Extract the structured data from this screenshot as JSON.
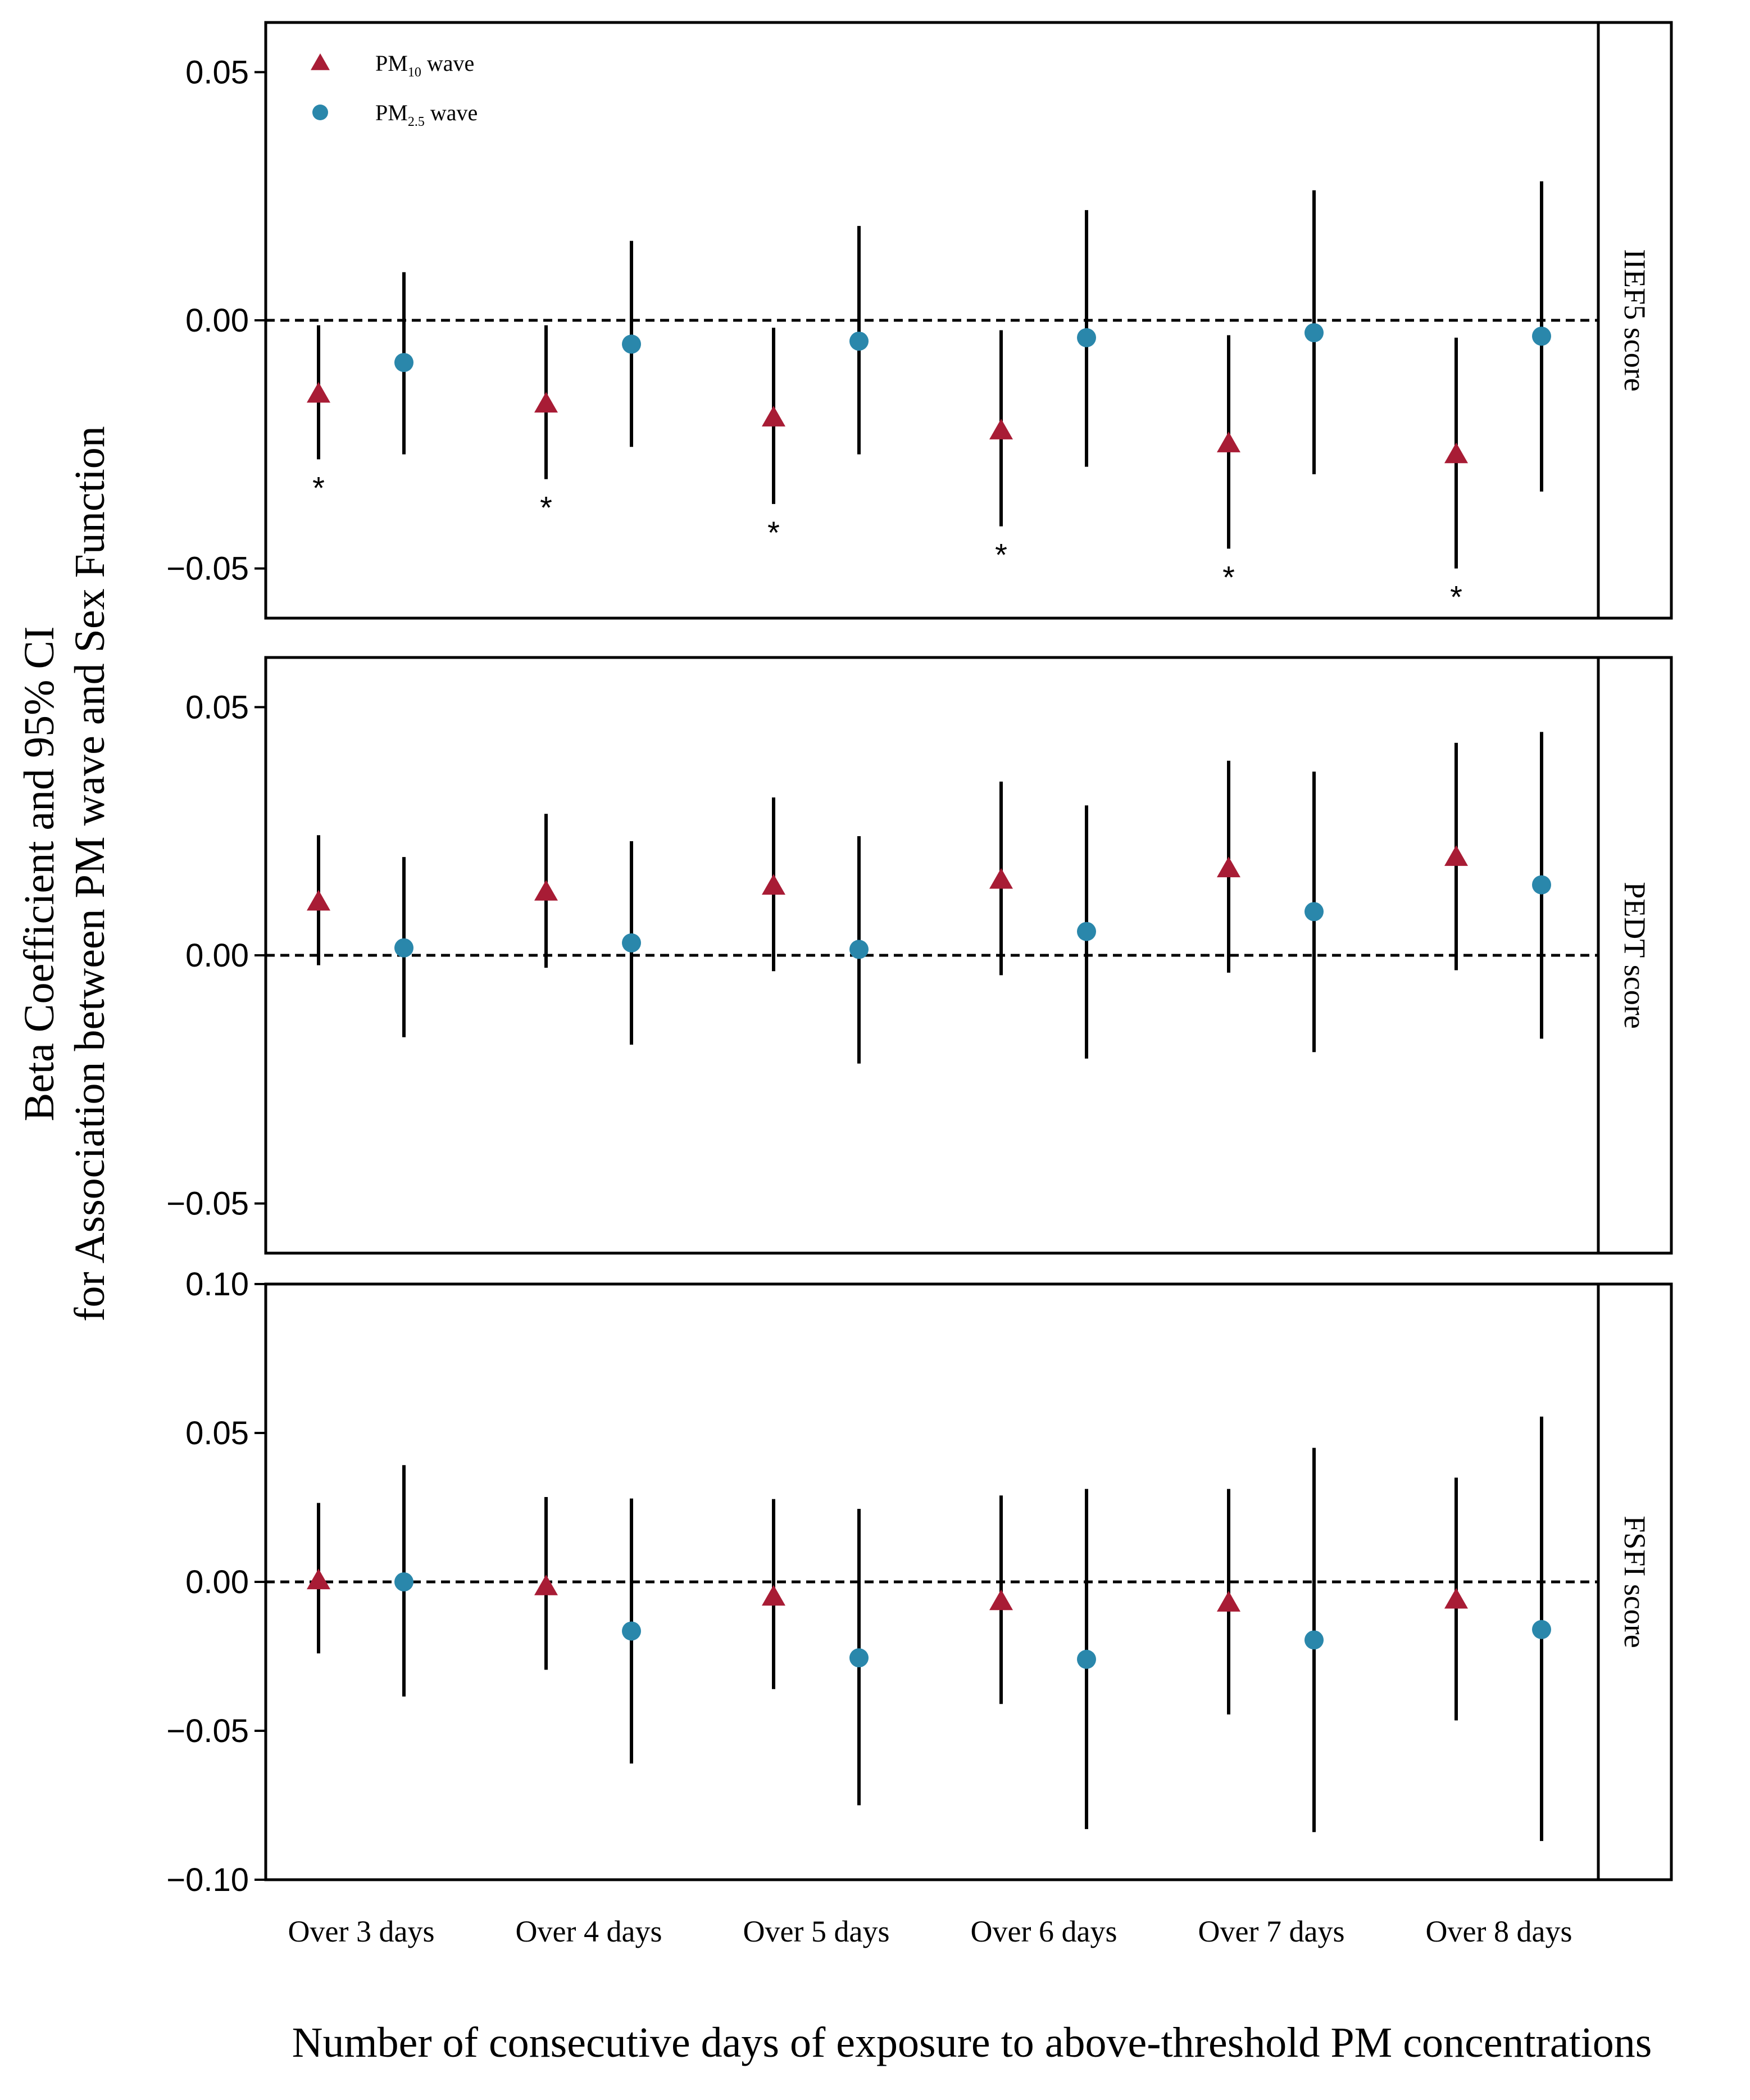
{
  "chart_data": {
    "type": "errorbar",
    "categories": [
      "Over 3 days",
      "Over 4 days",
      "Over 5 days",
      "Over 6 days",
      "Over 7 days",
      "Over 8 days"
    ],
    "xlabel": "Number of consecutive days of exposure to above-threshold PM concentrations",
    "ylabel_line1": "Beta Coefficient and 95% CI",
    "ylabel_line2": "for Association between PM wave and Sex Function",
    "legend": {
      "placement": "top-left",
      "entries": [
        {
          "base": "PM",
          "sub": "10",
          "suffix": " wave",
          "color": "#a81c35",
          "marker": "triangle"
        },
        {
          "base": "PM",
          "sub": "2.5",
          "suffix": " wave",
          "color": "#2a87ab",
          "marker": "circle"
        }
      ]
    },
    "significance_marker": "*",
    "panels": [
      {
        "strip": "IIEF5 score",
        "ylim": [
          -0.06,
          0.06
        ],
        "yticks": [
          0.05,
          0.0,
          -0.05
        ],
        "yticklabels": [
          "0.05",
          "0.00",
          "−0.05"
        ],
        "series": [
          {
            "name": "PM10 wave",
            "est": [
              -0.0148,
              -0.0168,
              -0.0196,
              -0.0222,
              -0.0248,
              -0.027
            ],
            "lo": [
              -0.028,
              -0.032,
              -0.037,
              -0.0415,
              -0.046,
              -0.05
            ],
            "hi": [
              -0.001,
              -0.001,
              -0.0015,
              -0.002,
              -0.003,
              -0.0035
            ],
            "sig": [
              true,
              true,
              true,
              true,
              true,
              true
            ]
          },
          {
            "name": "PM2.5 wave",
            "est": [
              -0.0085,
              -0.0048,
              -0.0042,
              -0.0035,
              -0.0025,
              -0.0032
            ],
            "lo": [
              -0.027,
              -0.0255,
              -0.027,
              -0.0295,
              -0.031,
              -0.0345
            ],
            "hi": [
              0.0097,
              0.016,
              0.019,
              0.0222,
              0.0262,
              0.028
            ],
            "sig": [
              false,
              false,
              false,
              false,
              false,
              false
            ]
          }
        ]
      },
      {
        "strip": "PEDT score",
        "ylim": [
          -0.06,
          0.06
        ],
        "yticks": [
          0.05,
          0.0,
          -0.05
        ],
        "yticklabels": [
          "0.05",
          "0.00",
          "−0.05"
        ],
        "series": [
          {
            "name": "PM10 wave",
            "est": [
              0.0108,
              0.0128,
              0.014,
              0.0152,
              0.0175,
              0.0198
            ],
            "lo": [
              -0.002,
              -0.0025,
              -0.0032,
              -0.004,
              -0.0035,
              -0.003
            ],
            "hi": [
              0.0242,
              0.0285,
              0.0318,
              0.035,
              0.0392,
              0.0428
            ],
            "sig": [
              false,
              false,
              false,
              false,
              false,
              false
            ]
          },
          {
            "name": "PM2.5 wave",
            "est": [
              0.0015,
              0.0025,
              0.0012,
              0.0048,
              0.0088,
              0.0142
            ],
            "lo": [
              -0.0165,
              -0.018,
              -0.0218,
              -0.0208,
              -0.0195,
              -0.0168
            ],
            "hi": [
              0.0198,
              0.023,
              0.024,
              0.0302,
              0.037,
              0.045
            ],
            "sig": [
              false,
              false,
              false,
              false,
              false,
              false
            ]
          }
        ]
      },
      {
        "strip": "FSFI score",
        "ylim": [
          -0.1,
          0.1
        ],
        "yticks": [
          0.1,
          0.05,
          0.0,
          -0.05,
          -0.1
        ],
        "yticklabels": [
          "0.10",
          "0.05",
          "0.00",
          "−0.05",
          "−0.10"
        ],
        "series": [
          {
            "name": "PM10 wave",
            "est": [
              0.0005,
              -0.0015,
              -0.005,
              -0.0065,
              -0.007,
              -0.006
            ],
            "lo": [
              -0.024,
              -0.0295,
              -0.036,
              -0.041,
              -0.0445,
              -0.0465
            ],
            "hi": [
              0.0265,
              0.0285,
              0.0278,
              0.029,
              0.0312,
              0.035
            ],
            "sig": [
              false,
              false,
              false,
              false,
              false,
              false
            ]
          },
          {
            "name": "PM2.5 wave",
            "est": [
              0.0,
              -0.0165,
              -0.0255,
              -0.026,
              -0.0195,
              -0.016
            ],
            "lo": [
              -0.0385,
              -0.061,
              -0.075,
              -0.083,
              -0.084,
              -0.087
            ],
            "hi": [
              0.0392,
              0.028,
              0.0245,
              0.0312,
              0.045,
              0.0555
            ],
            "sig": [
              false,
              false,
              false,
              false,
              false,
              false
            ]
          }
        ]
      }
    ]
  },
  "colors": {
    "pm10": "#a81c35",
    "pm25": "#2a87ab",
    "axis": "#000000"
  }
}
